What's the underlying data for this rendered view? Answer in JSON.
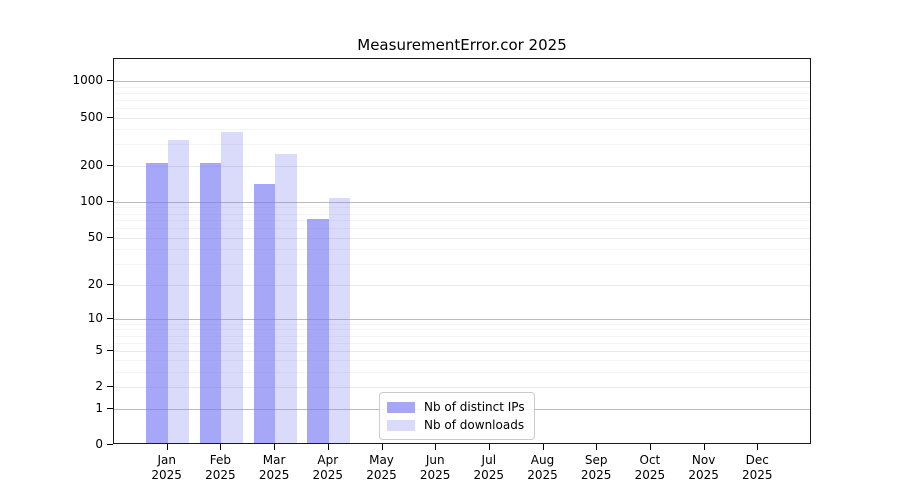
{
  "chart_data": {
    "type": "bar",
    "title": "MeasurementError.cor 2025",
    "categories": [
      "Jan",
      "Feb",
      "Mar",
      "Apr",
      "May",
      "Jun",
      "Jul",
      "Aug",
      "Sep",
      "Oct",
      "Nov",
      "Dec"
    ],
    "year_label": "2025",
    "series": [
      {
        "name": "Nb of distinct IPs",
        "color_hex": "#a7a7f5",
        "color_rgba": "rgba(120,120,243,0.65)",
        "values": [
          210,
          210,
          140,
          72,
          0,
          0,
          0,
          0,
          0,
          0,
          0,
          0
        ]
      },
      {
        "name": "Nb of downloads",
        "color_hex": "#dadaf9",
        "color_rgba": "rgba(132,132,240,0.30)",
        "values": [
          325,
          380,
          250,
          107,
          0,
          0,
          0,
          0,
          0,
          0,
          0,
          0
        ]
      }
    ],
    "y_ticks": [
      0,
      1,
      2,
      5,
      10,
      20,
      50,
      100,
      200,
      500,
      1000
    ],
    "scale": "log1p",
    "ylim": [
      0,
      1520
    ],
    "xlabel": "",
    "ylabel": "",
    "grid": "on",
    "legend_position": "inside-bottom-center"
  },
  "colors": {
    "background": "#ffffff",
    "axis": "#1a1a1a",
    "grid_major": "#bbbbbb",
    "grid_labeled": "#e9e9e9",
    "grid_minor": "#f4f4f4",
    "text": "#000000"
  }
}
